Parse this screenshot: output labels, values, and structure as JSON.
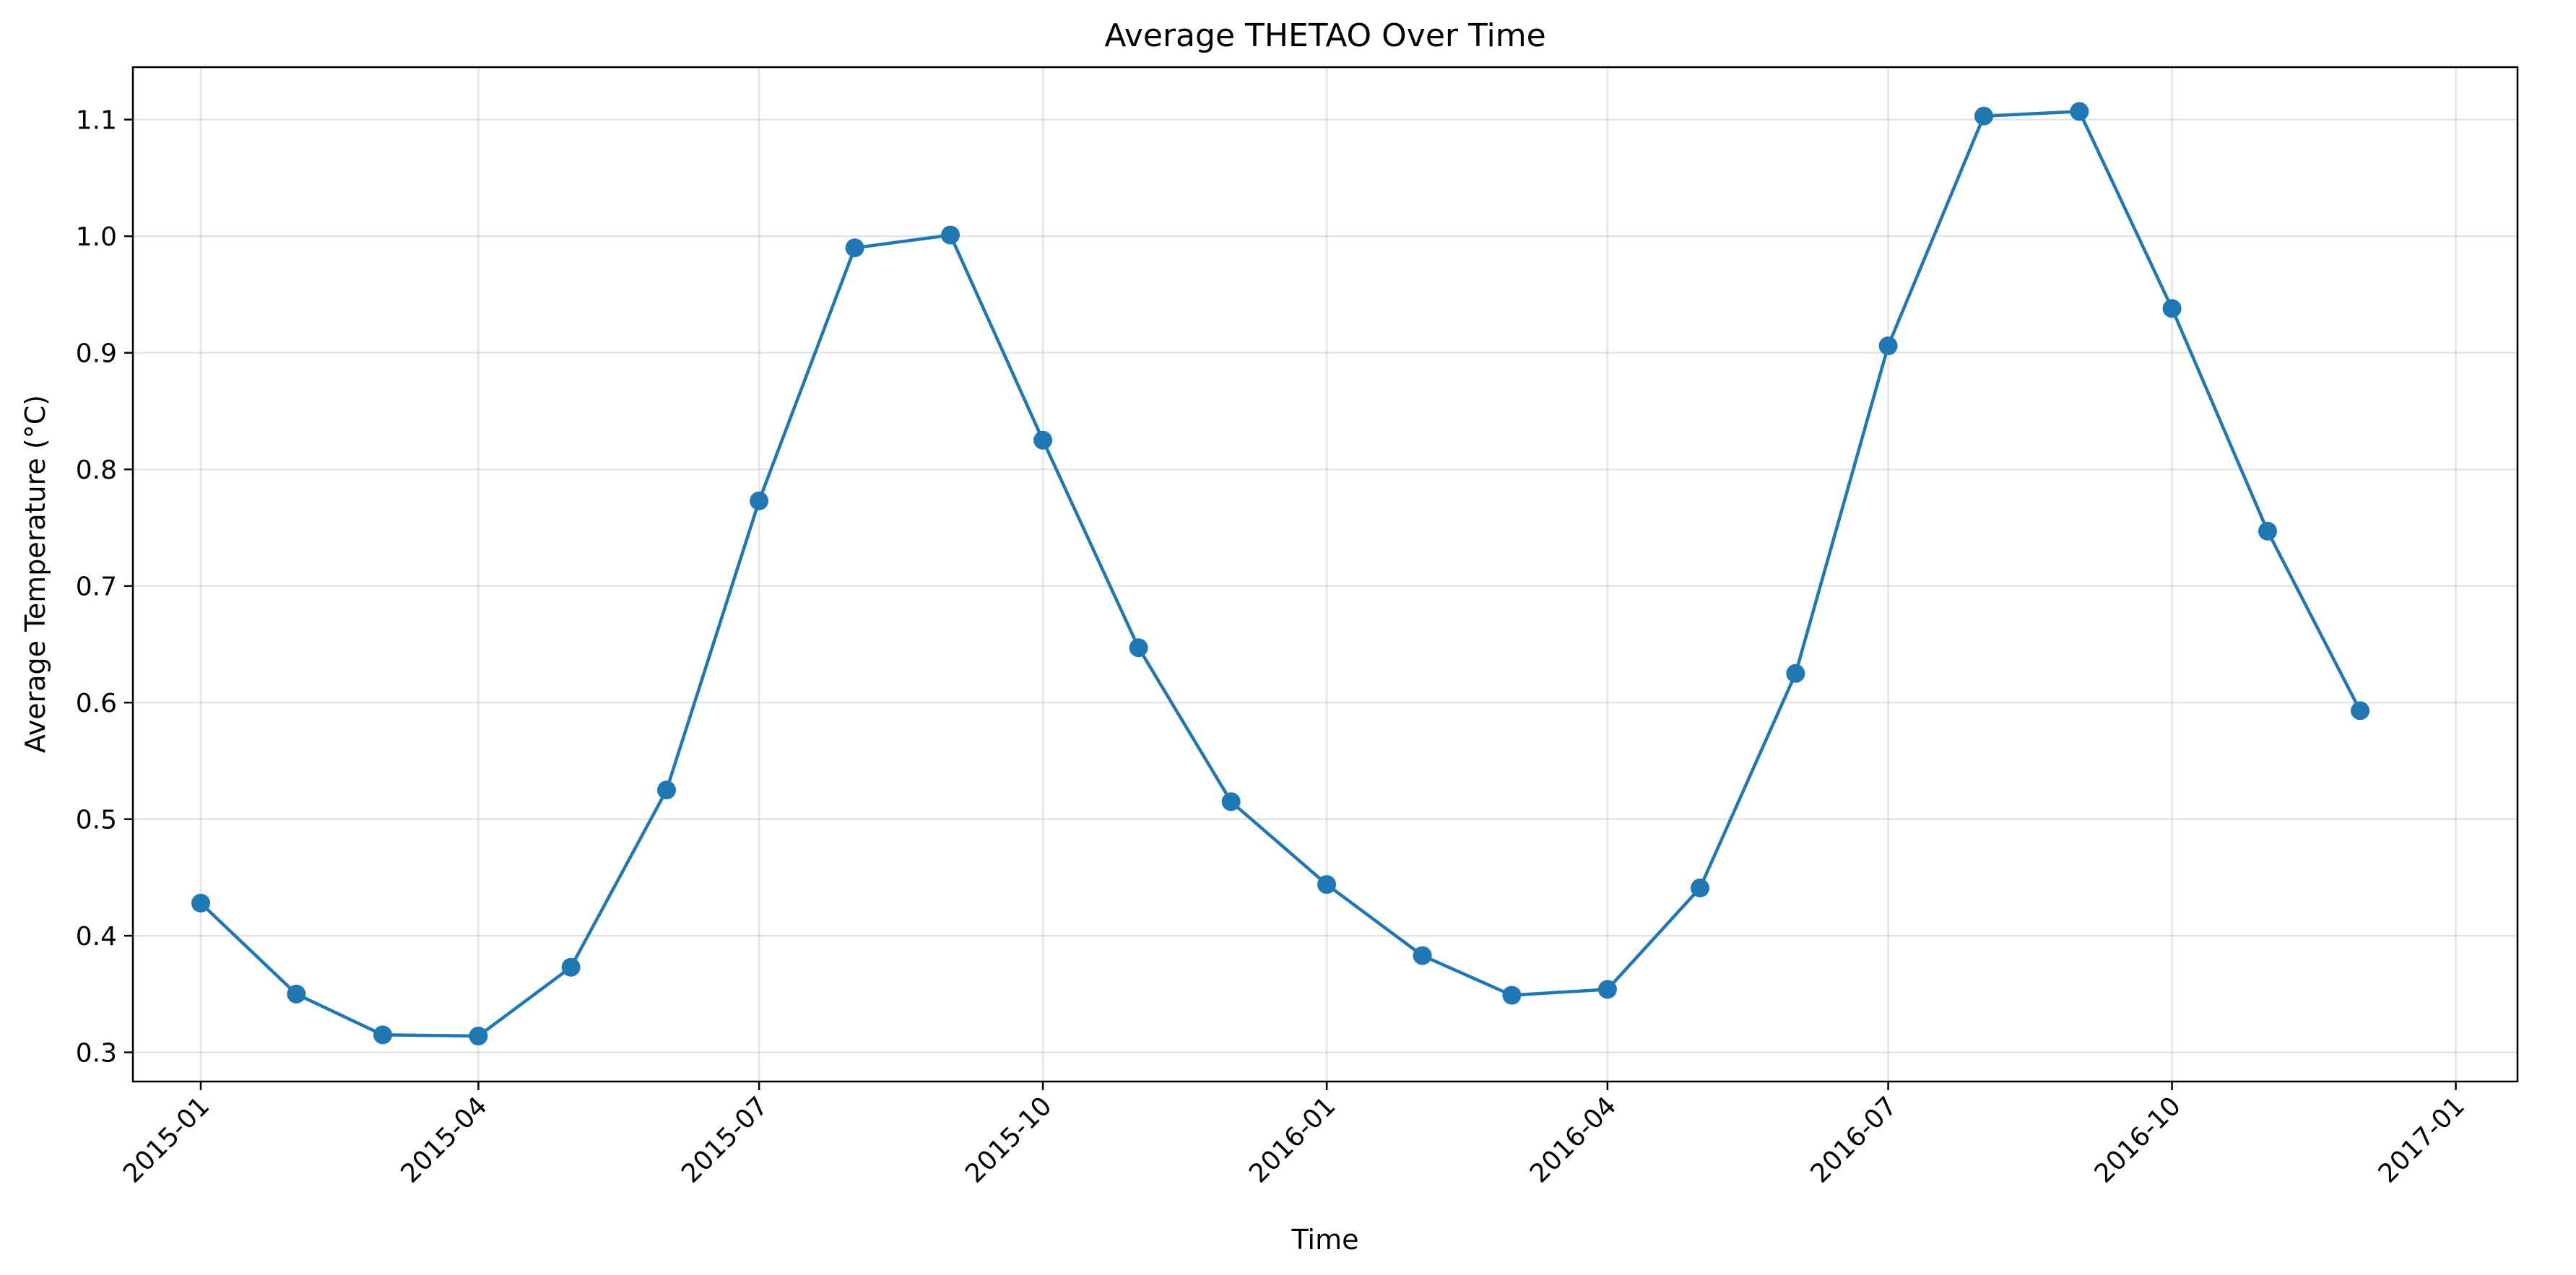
{
  "chart_data": {
    "type": "line",
    "title": "Average THETAO Over Time",
    "xlabel": "Time",
    "ylabel": "Average Temperature (°C)",
    "x": [
      "2015-01",
      "2015-02",
      "2015-03",
      "2015-04",
      "2015-05",
      "2015-06",
      "2015-07",
      "2015-08",
      "2015-09",
      "2015-10",
      "2015-11",
      "2015-12",
      "2016-01",
      "2016-02",
      "2016-03",
      "2016-04",
      "2016-05",
      "2016-06",
      "2016-07",
      "2016-08",
      "2016-09",
      "2016-10",
      "2016-11",
      "2016-12"
    ],
    "series": [
      {
        "name": "",
        "color": "#1f77b4",
        "marker": "circle",
        "values": [
          0.428,
          0.35,
          0.315,
          0.314,
          0.373,
          0.525,
          0.773,
          0.99,
          1.001,
          0.825,
          0.647,
          0.515,
          0.444,
          0.383,
          0.349,
          0.354,
          0.441,
          0.625,
          0.906,
          1.103,
          1.107,
          0.938,
          0.747,
          0.593
        ]
      }
    ],
    "xticks": [
      "2015-01",
      "2015-04",
      "2015-07",
      "2015-10",
      "2016-01",
      "2016-04",
      "2016-07",
      "2016-10",
      "2017-01"
    ],
    "xlim": [
      "2014-12-10",
      "2017-01-21"
    ],
    "yticks": [
      "0.3",
      "0.4",
      "0.5",
      "0.6",
      "0.7",
      "0.8",
      "0.9",
      "1.0",
      "1.1"
    ],
    "ylim": [
      0.275,
      1.145
    ],
    "grid": true,
    "legend": "none"
  }
}
